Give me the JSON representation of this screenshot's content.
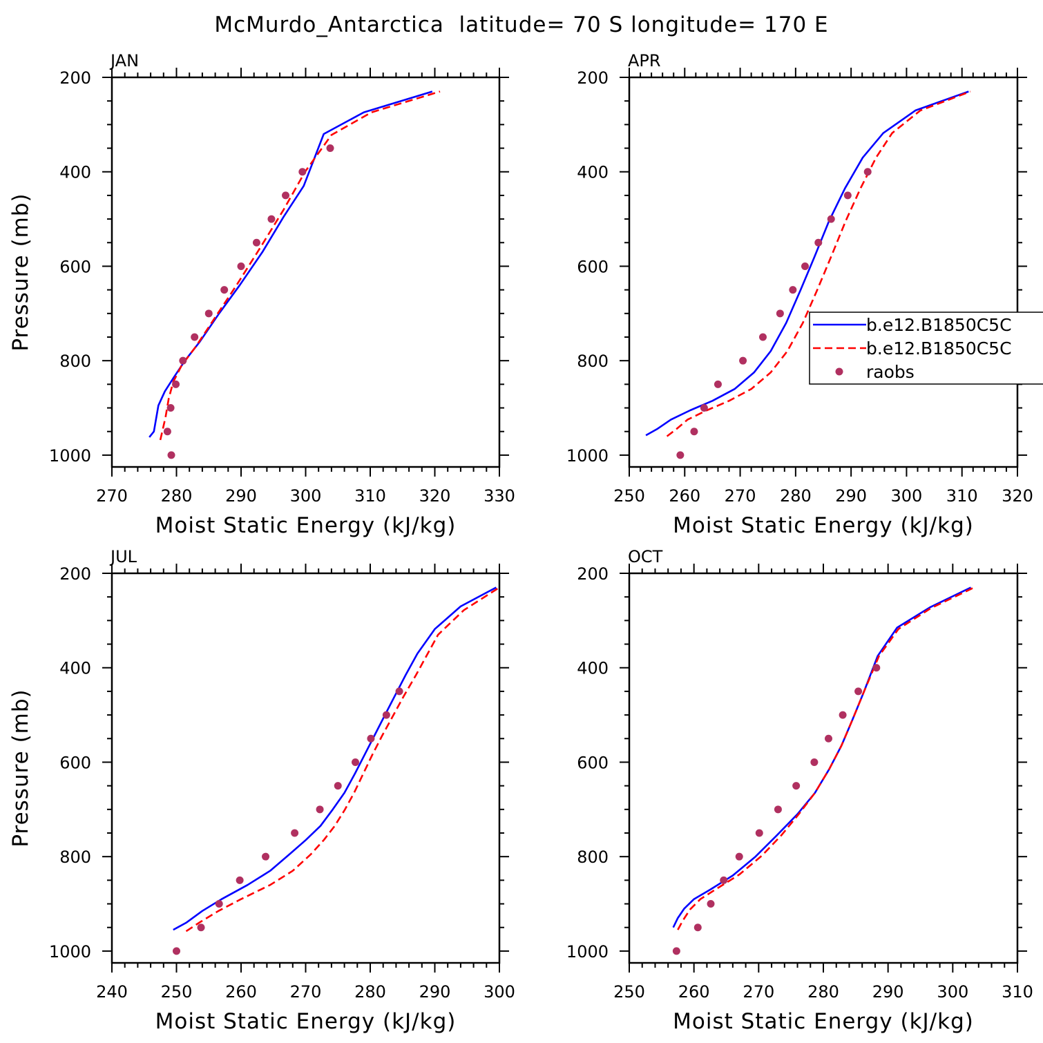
{
  "figure": {
    "title": "McMurdo_Antarctica  latitude= 70 S longitude= 170 E"
  },
  "legend": {
    "items": [
      {
        "label": "b.e12.B1850C5C",
        "style": "solid",
        "color": "#0000ff"
      },
      {
        "label": "b.e12.B1850C5C",
        "style": "dashed",
        "color": "#ff0000"
      },
      {
        "label": "raobs",
        "style": "marker",
        "color": "#b03060"
      }
    ]
  },
  "chart_data": [
    {
      "type": "line",
      "title": "JAN",
      "xlabel": "Moist Static Energy (kJ/kg)",
      "ylabel": "Pressure (mb)",
      "xlim": [
        270,
        330
      ],
      "ylim": [
        1000,
        200
      ],
      "xticks": [
        270,
        280,
        290,
        300,
        310,
        320,
        330
      ],
      "yticks": [
        200,
        400,
        600,
        800,
        1000
      ],
      "series": [
        {
          "name": "b.e12.B1850C5C",
          "style": "solid",
          "color": "#0000ff",
          "x": [
            275.8,
            276.5,
            277.2,
            278.2,
            279.6,
            281.3,
            283.6,
            286.6,
            289.8,
            293.3,
            296.6,
            299.7,
            302.8,
            309.0,
            319.6
          ],
          "y": [
            962,
            950,
            895,
            865,
            835,
            800,
            760,
            700,
            640,
            570,
            495,
            430,
            320,
            274,
            230
          ]
        },
        {
          "name": "b.e12.B1850C5C",
          "style": "dashed",
          "color": "#ff0000",
          "x": [
            277.5,
            278.3,
            278.8,
            279.5,
            280.8,
            283.0,
            285.9,
            289.3,
            293.0,
            296.6,
            299.9,
            304.0,
            310.2,
            320.8
          ],
          "y": [
            968,
            920,
            880,
            845,
            810,
            770,
            710,
            640,
            560,
            480,
            400,
            322,
            274,
            230
          ]
        }
      ],
      "raobs": {
        "x": [
          279.2,
          278.6,
          279.1,
          279.9,
          281.0,
          282.8,
          285.0,
          287.4,
          290.0,
          292.4,
          294.7,
          296.9,
          299.5,
          303.8
        ],
        "y": [
          1000,
          950,
          900,
          850,
          800,
          750,
          700,
          650,
          600,
          550,
          500,
          450,
          400,
          350
        ]
      }
    },
    {
      "type": "line",
      "title": "APR",
      "xlabel": "Moist Static Energy (kJ/kg)",
      "ylabel": "",
      "xlim": [
        250,
        320
      ],
      "ylim": [
        1000,
        200
      ],
      "xticks": [
        250,
        260,
        270,
        280,
        290,
        300,
        310,
        320
      ],
      "yticks": [
        200,
        400,
        600,
        800,
        1000
      ],
      "series": [
        {
          "name": "b.e12.B1850C5C",
          "style": "solid",
          "color": "#0000ff",
          "x": [
            253.0,
            255.0,
            257.5,
            261.0,
            265.0,
            269.0,
            272.5,
            275.5,
            278.3,
            280.9,
            283.4,
            286.0,
            288.9,
            292.1,
            295.8,
            301.6,
            311.2
          ],
          "y": [
            958,
            945,
            925,
            905,
            885,
            860,
            825,
            780,
            720,
            650,
            580,
            505,
            435,
            370,
            318,
            270,
            230
          ]
        },
        {
          "name": "b.e12.B1850C5C",
          "style": "dashed",
          "color": "#ff0000",
          "x": [
            256.8,
            258.5,
            260.5,
            264.0,
            268.0,
            272.0,
            275.5,
            278.5,
            281.3,
            283.9,
            286.4,
            289.0,
            291.7,
            294.5,
            297.4,
            302.5,
            311.5
          ],
          "y": [
            960,
            945,
            925,
            905,
            885,
            860,
            825,
            780,
            720,
            650,
            580,
            505,
            435,
            370,
            318,
            270,
            230
          ]
        }
      ],
      "raobs": {
        "x": [
          259.2,
          261.7,
          263.5,
          266.0,
          270.5,
          274.1,
          277.2,
          279.5,
          281.7,
          284.1,
          286.4,
          289.4,
          293.0
        ],
        "y": [
          1000,
          950,
          900,
          850,
          800,
          750,
          700,
          650,
          600,
          550,
          500,
          450,
          400
        ]
      }
    },
    {
      "type": "line",
      "title": "JUL",
      "xlabel": "Moist Static Energy (kJ/kg)",
      "ylabel": "Pressure (mb)",
      "xlim": [
        240,
        300
      ],
      "ylim": [
        1000,
        200
      ],
      "xticks": [
        240,
        250,
        260,
        270,
        280,
        290,
        300
      ],
      "yticks": [
        200,
        400,
        600,
        800,
        1000
      ],
      "series": [
        {
          "name": "b.e12.B1850C5C",
          "style": "solid",
          "color": "#0000ff",
          "x": [
            249.5,
            251.5,
            254.0,
            257.0,
            261.0,
            264.5,
            267.5,
            270.0,
            272.3,
            274.2,
            276.0,
            277.6,
            279.1,
            280.6,
            282.1,
            283.8,
            285.5,
            287.3,
            290.0,
            294.0,
            299.5
          ],
          "y": [
            955,
            940,
            915,
            890,
            860,
            830,
            795,
            765,
            735,
            700,
            665,
            625,
            585,
            545,
            505,
            460,
            415,
            370,
            318,
            270,
            230
          ]
        },
        {
          "name": "b.e12.B1850C5C",
          "style": "dashed",
          "color": "#ff0000",
          "x": [
            251.5,
            253.5,
            256.5,
            260.0,
            264.5,
            268.0,
            270.8,
            272.8,
            274.5,
            276.1,
            277.5,
            278.9,
            280.3,
            281.8,
            283.4,
            285.2,
            287.1,
            290.5,
            294.5,
            300.0
          ],
          "y": [
            958,
            940,
            915,
            890,
            860,
            830,
            795,
            765,
            735,
            700,
            665,
            625,
            585,
            545,
            505,
            460,
            415,
            330,
            278,
            230
          ]
        }
      ],
      "raobs": {
        "x": [
          250.0,
          253.8,
          256.6,
          259.8,
          263.8,
          268.3,
          272.2,
          275.0,
          277.7,
          280.1,
          282.5,
          284.5
        ],
        "y": [
          1000,
          950,
          900,
          850,
          800,
          750,
          700,
          650,
          600,
          550,
          500,
          450
        ]
      }
    },
    {
      "type": "line",
      "title": "OCT",
      "xlabel": "Moist Static Energy (kJ/kg)",
      "ylabel": "",
      "xlim": [
        250,
        310
      ],
      "ylim": [
        1000,
        200
      ],
      "xticks": [
        250,
        260,
        270,
        280,
        290,
        300,
        310
      ],
      "yticks": [
        200,
        400,
        600,
        800,
        1000
      ],
      "series": [
        {
          "name": "b.e12.B1850C5C",
          "style": "solid",
          "color": "#0000ff",
          "x": [
            256.8,
            257.5,
            258.5,
            260.0,
            262.5,
            266.0,
            269.5,
            272.8,
            276.0,
            278.7,
            280.9,
            282.8,
            284.5,
            286.3,
            288.4,
            291.4,
            296.5,
            302.8
          ],
          "y": [
            950,
            930,
            910,
            890,
            870,
            840,
            800,
            755,
            710,
            665,
            615,
            565,
            510,
            450,
            375,
            315,
            272,
            230
          ]
        },
        {
          "name": "b.e12.B1850C5C",
          "style": "dashed",
          "color": "#ff0000",
          "x": [
            257.5,
            258.3,
            259.4,
            261.0,
            263.5,
            267.0,
            270.5,
            273.5,
            276.2,
            278.7,
            280.9,
            282.8,
            284.5,
            286.3,
            288.6,
            291.6,
            296.6,
            303.3
          ],
          "y": [
            955,
            935,
            912,
            890,
            868,
            838,
            798,
            755,
            710,
            665,
            615,
            565,
            510,
            450,
            375,
            318,
            274,
            230
          ]
        }
      ],
      "raobs": {
        "x": [
          257.3,
          260.6,
          262.6,
          264.6,
          267.0,
          270.1,
          273.0,
          275.8,
          278.6,
          280.8,
          283.0,
          285.4,
          288.2
        ],
        "y": [
          1000,
          950,
          900,
          850,
          800,
          750,
          700,
          650,
          600,
          550,
          500,
          450,
          400
        ]
      }
    }
  ]
}
